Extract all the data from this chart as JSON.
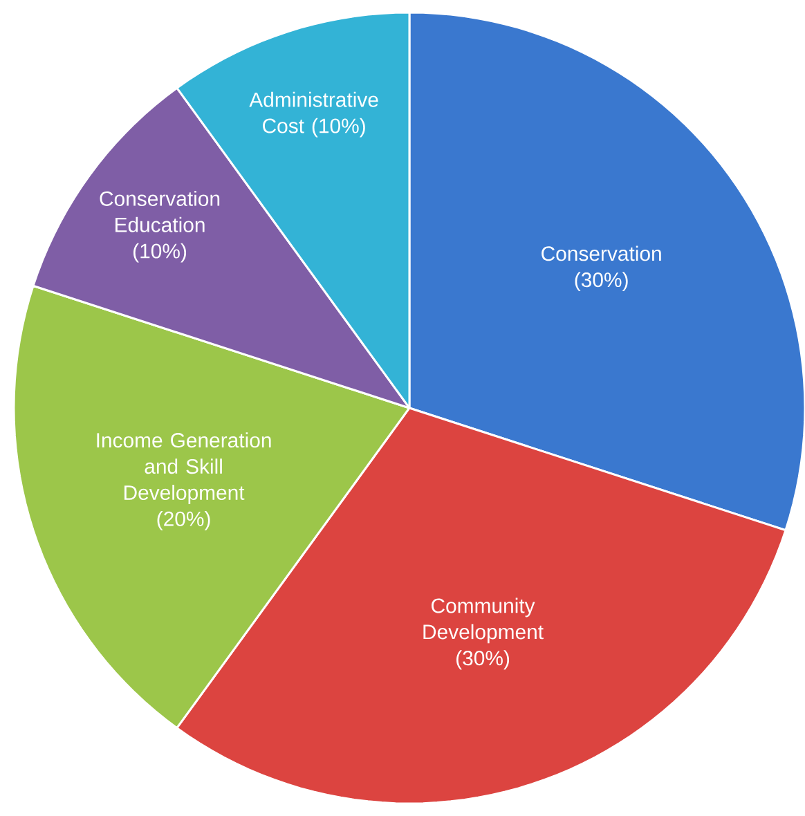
{
  "chart_data": {
    "type": "pie",
    "categories": [
      "Conservation (30%)",
      "Community Development (30%)",
      "Income Generation and Skill Development (20%)",
      "Conservation Education (10%)",
      "Administrative Cost (10%)"
    ],
    "values": [
      30,
      30,
      20,
      10,
      10
    ],
    "colors": [
      "#3a78cf",
      "#dc4440",
      "#9cc64a",
      "#7f5ea6",
      "#33b3d6"
    ]
  }
}
